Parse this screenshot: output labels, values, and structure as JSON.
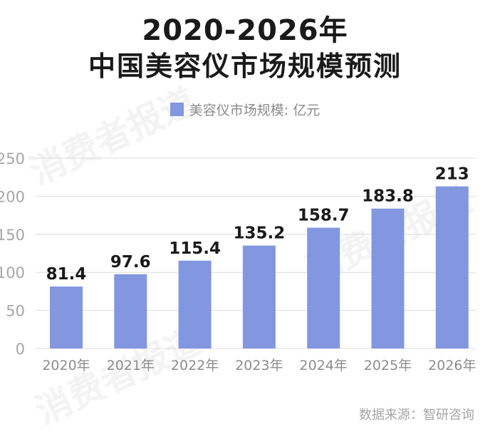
{
  "title_line1": "2020-2026年",
  "title_line2": "中国美容仪市场规模预测",
  "legend": {
    "label": "美容仪市场规模: 亿元"
  },
  "source": "数据来源：智研咨询",
  "watermark": "消费者报道",
  "colors": {
    "bar": "#8397e0",
    "grid": "#dcdcdc",
    "tick": "#a6a6a6",
    "label": "#1a1a1a"
  },
  "chart_data": {
    "type": "bar",
    "categories": [
      "2020年",
      "2021年",
      "2022年",
      "2023年",
      "2024年",
      "2025年",
      "2026年"
    ],
    "series": [
      {
        "name": "美容仪市场规模: 亿元",
        "values": [
          81.4,
          97.6,
          115.4,
          135.2,
          158.7,
          183.8,
          213
        ]
      }
    ],
    "data_labels": [
      "81.4",
      "97.6",
      "115.4",
      "135.2",
      "158.7",
      "183.8",
      "213"
    ],
    "yticks": [
      0,
      50,
      100,
      150,
      200,
      250
    ],
    "ylim": [
      0,
      250
    ],
    "grid": true,
    "legend_position": "top-center"
  }
}
